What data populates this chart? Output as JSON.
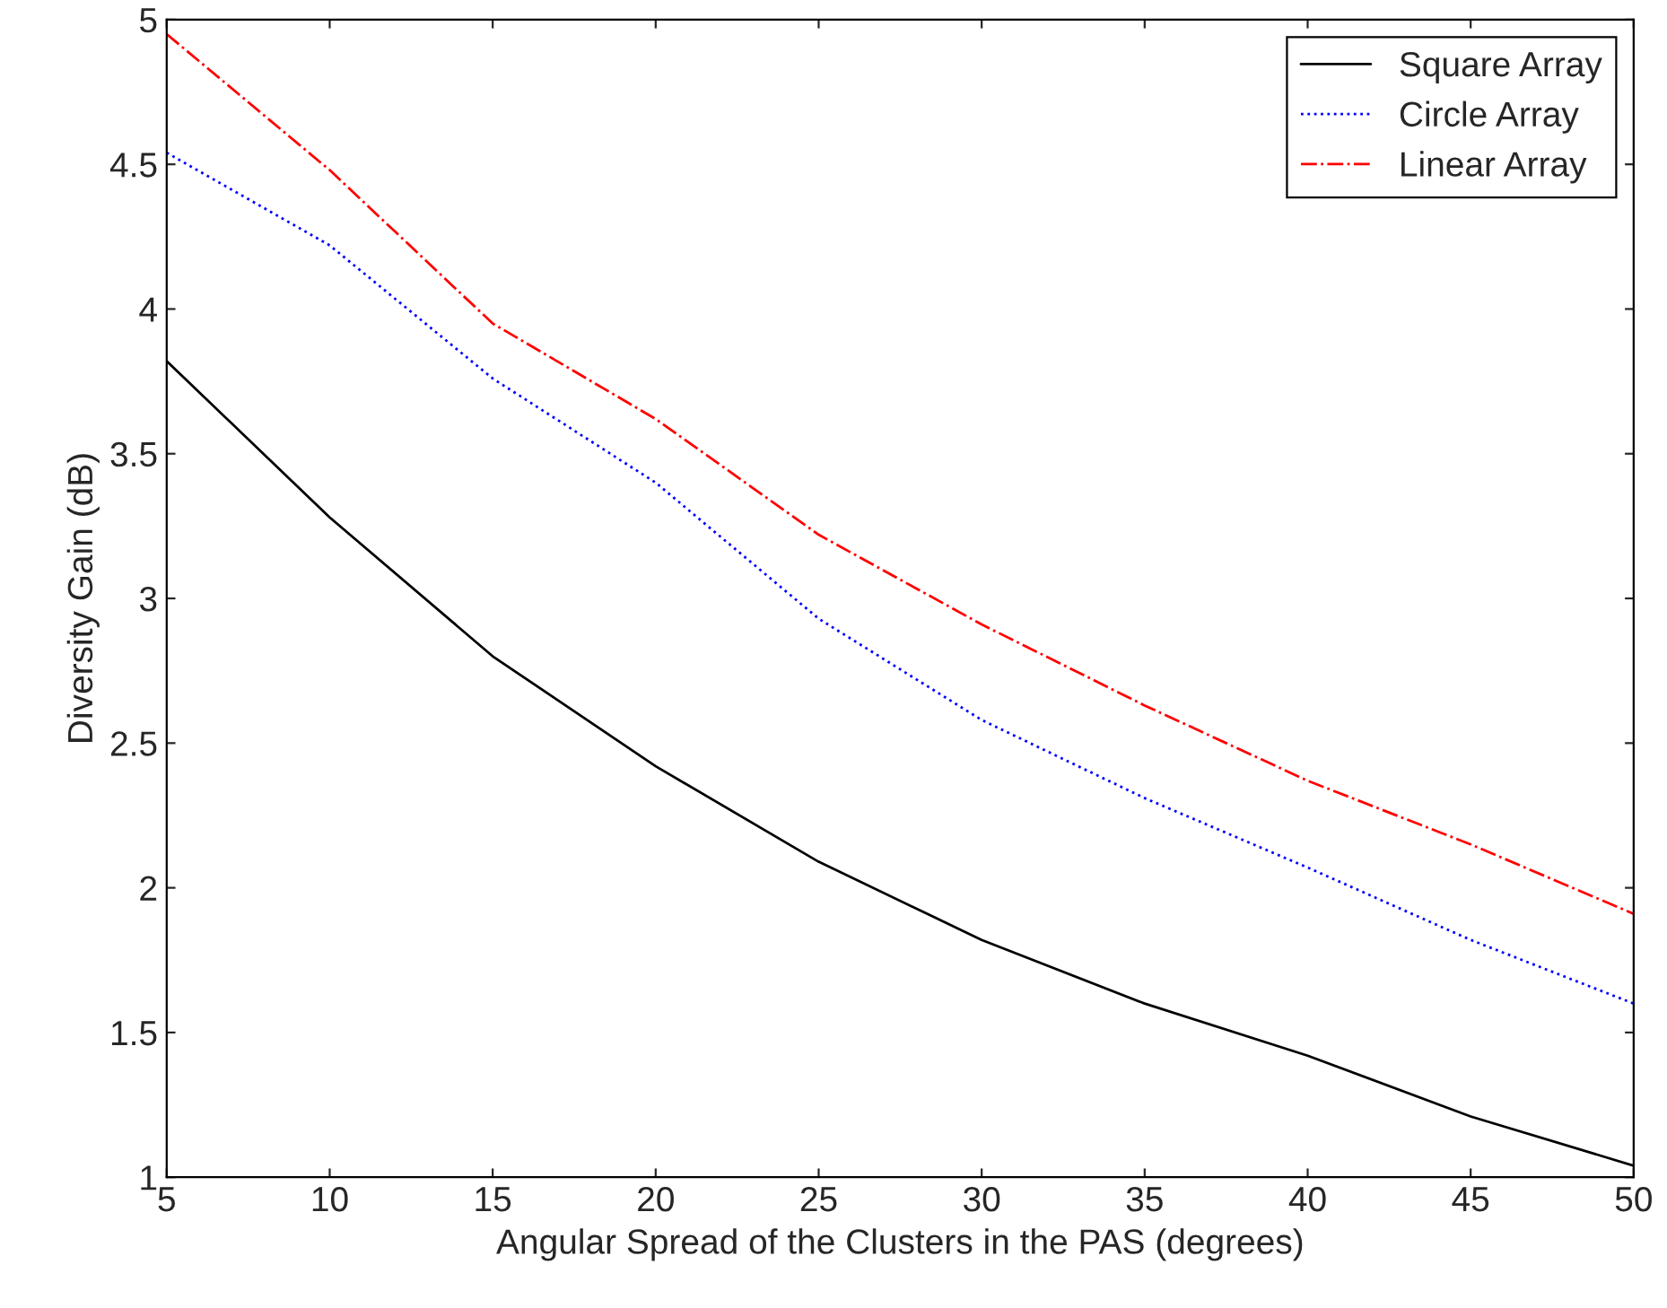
{
  "chart_data": {
    "type": "line",
    "xlabel": "Angular Spread of the Clusters in the PAS (degrees)",
    "ylabel": "Diversity Gain (dB)",
    "x": [
      5,
      10,
      15,
      20,
      25,
      30,
      35,
      40,
      45,
      50
    ],
    "series": [
      {
        "name": "Square Array",
        "color": "#000000",
        "line_style": "solid",
        "values": [
          3.82,
          3.28,
          2.8,
          2.42,
          2.09,
          1.82,
          1.6,
          1.42,
          1.21,
          1.04
        ]
      },
      {
        "name": "Circle Array",
        "color": "#0000ff",
        "line_style": "dotted",
        "values": [
          4.54,
          4.22,
          3.76,
          3.4,
          2.93,
          2.58,
          2.31,
          2.07,
          1.82,
          1.6
        ]
      },
      {
        "name": "Linear Array",
        "color": "#ff0000",
        "line_style": "dashdot",
        "values": [
          4.95,
          4.48,
          3.95,
          3.62,
          3.22,
          2.91,
          2.63,
          2.37,
          2.15,
          1.91
        ]
      }
    ],
    "xlim": [
      5,
      50
    ],
    "ylim": [
      1,
      5
    ],
    "xticks": [
      5,
      10,
      15,
      20,
      25,
      30,
      35,
      40,
      45,
      50
    ],
    "yticks": [
      1,
      {
        "value": 1.5,
        "label": "1.5"
      },
      2,
      {
        "value": 2.5,
        "label": "2.5"
      },
      3,
      {
        "value": 3.5,
        "label": "3.5"
      },
      4,
      {
        "value": 4.5,
        "label": "4.5"
      },
      5
    ],
    "grid": false,
    "legend": "top right",
    "marker": "none"
  }
}
